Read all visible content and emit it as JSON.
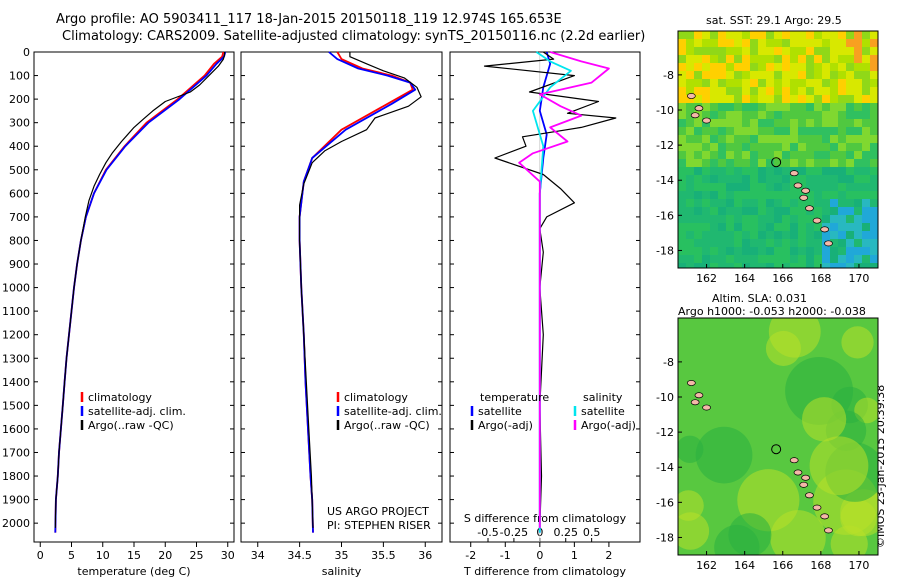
{
  "header": {
    "line1": "Argo profile: AO 5903411_117 18-Jan-2015 20150118_119 12.974S 165.653E",
    "line2": "Climatology: CARS2009. Satellite-adjusted climatology: synTS_20150116.nc (2.2d earlier)"
  },
  "credit": "©IMOS 23-Jan-2015 20:39:38",
  "maps": {
    "sst_title": "sat. SST: 29.1  Argo: 29.5",
    "sla_title1": "Altim. SLA: 0.031",
    "sla_title2": "Argo h1000: -0.053 h2000: -0.038",
    "x_ticks": [
      162,
      164,
      166,
      168,
      170
    ],
    "y_ticks_sst": [
      -8,
      -10,
      -12,
      -14,
      -16,
      -18
    ],
    "y_ticks_sla": [
      -8,
      -10,
      -12,
      -14,
      -16,
      -18
    ],
    "xlim": [
      160.5,
      171.0
    ],
    "ylim": [
      -19.0,
      -5.5
    ],
    "float_lon": 165.653,
    "float_lat": -12.974
  },
  "chart_data": [
    {
      "type": "line",
      "id": "temperature",
      "xlabel": "temperature (deg C)",
      "xlim": [
        -1,
        31
      ],
      "ylim": [
        2080,
        0
      ],
      "x_ticks": [
        0,
        5,
        10,
        15,
        20,
        25,
        30
      ],
      "y_ticks": [
        0,
        100,
        200,
        300,
        400,
        500,
        600,
        700,
        800,
        900,
        1000,
        1100,
        1200,
        1300,
        1400,
        1500,
        1600,
        1700,
        1800,
        1900,
        2000
      ],
      "legend": [
        "climatology",
        "satellite-adj. clim.",
        "Argo(..raw -QC)"
      ],
      "series": [
        {
          "name": "climatology",
          "color": "#ff0000",
          "x": [
            29.3,
            29.1,
            27.8,
            26.3,
            22.0,
            17.0,
            13.5,
            10.5,
            8.6,
            7.3,
            6.5,
            5.9,
            5.4,
            5.0,
            4.6,
            4.2,
            3.9,
            3.6,
            3.3,
            3.0,
            2.8,
            2.5,
            2.4
          ],
          "y": [
            0,
            20,
            50,
            100,
            200,
            300,
            400,
            500,
            600,
            700,
            800,
            900,
            1000,
            1100,
            1200,
            1300,
            1400,
            1500,
            1600,
            1700,
            1800,
            1900,
            2040
          ]
        },
        {
          "name": "satellite-adj. clim.",
          "color": "#0000ff",
          "x": [
            29.6,
            29.4,
            28.2,
            26.6,
            22.3,
            17.3,
            13.6,
            10.6,
            8.6,
            7.3,
            6.5,
            5.9,
            5.4,
            5.0,
            4.6,
            4.2,
            3.9,
            3.6,
            3.3,
            3.0,
            2.8,
            2.5,
            2.4
          ],
          "y": [
            0,
            20,
            50,
            100,
            200,
            300,
            400,
            500,
            600,
            700,
            800,
            900,
            1000,
            1100,
            1200,
            1300,
            1400,
            1500,
            1600,
            1700,
            1800,
            1900,
            2040
          ]
        },
        {
          "name": "Argo(..raw -QC)",
          "color": "#000000",
          "x": [
            29.5,
            29.5,
            29.3,
            28.5,
            27.0,
            25.5,
            24.0,
            20.0,
            18.0,
            16.5,
            15.0,
            13.0,
            11.5,
            10.5,
            9.5,
            8.6,
            7.8,
            7.2,
            6.5,
            5.9,
            5.4,
            5.0,
            4.6,
            4.2,
            3.9,
            3.6,
            3.3,
            3.0,
            2.8,
            2.5,
            2.4
          ],
          "y": [
            0,
            10,
            30,
            60,
            100,
            140,
            170,
            210,
            250,
            285,
            320,
            380,
            430,
            470,
            520,
            570,
            630,
            700,
            800,
            900,
            1000,
            1100,
            1200,
            1300,
            1400,
            1500,
            1600,
            1700,
            1800,
            1900,
            2020
          ]
        }
      ]
    },
    {
      "type": "line",
      "id": "salinity",
      "xlabel": "salinity",
      "xlim": [
        33.8,
        36.2
      ],
      "ylim": [
        2080,
        0
      ],
      "x_ticks": [
        34,
        34.5,
        35,
        35.5,
        36
      ],
      "legend": [
        "climatology",
        "satellite-adj. clim.",
        "Argo(..raw -QC)"
      ],
      "annotation": [
        "US ARGO PROJECT",
        "PI: STEPHEN RISER"
      ],
      "series": [
        {
          "name": "climatology",
          "color": "#ff0000",
          "x": [
            34.95,
            35.0,
            35.25,
            35.6,
            35.82,
            35.85,
            35.55,
            35.0,
            34.65,
            34.55,
            34.5,
            34.5,
            34.52,
            34.55,
            34.57,
            34.6,
            34.63,
            34.65,
            34.66
          ],
          "y": [
            0,
            30,
            70,
            100,
            130,
            160,
            220,
            330,
            450,
            550,
            700,
            800,
            1000,
            1200,
            1400,
            1600,
            1800,
            1900,
            2040
          ]
        },
        {
          "name": "satellite-adj. clim.",
          "color": "#0000ff",
          "x": [
            34.85,
            34.95,
            35.2,
            35.55,
            35.82,
            35.88,
            35.6,
            35.05,
            34.65,
            34.55,
            34.5,
            34.5,
            34.52,
            34.55,
            34.57,
            34.6,
            34.63,
            34.65,
            34.66
          ],
          "y": [
            0,
            30,
            70,
            100,
            130,
            160,
            220,
            330,
            450,
            550,
            700,
            800,
            1000,
            1200,
            1400,
            1600,
            1800,
            1900,
            2040
          ]
        },
        {
          "name": "Argo(..raw -QC)",
          "color": "#000000",
          "x": [
            35.1,
            35.1,
            35.3,
            35.5,
            35.75,
            35.9,
            35.95,
            35.8,
            35.4,
            35.3,
            35.0,
            34.8,
            34.65,
            34.55,
            34.5,
            34.5,
            34.52,
            34.55,
            34.58,
            34.61,
            34.64,
            34.66
          ],
          "y": [
            0,
            20,
            50,
            80,
            110,
            150,
            190,
            230,
            280,
            330,
            380,
            420,
            470,
            560,
            650,
            800,
            1000,
            1200,
            1400,
            1600,
            1800,
            2020
          ]
        }
      ]
    },
    {
      "type": "line",
      "id": "differences",
      "xlabel": "T difference from climatology",
      "toplabel": "S difference from climatology",
      "xlim": [
        -2.6,
        2.9
      ],
      "ylim": [
        2080,
        0
      ],
      "x_ticks": [
        -2,
        -1,
        0,
        1,
        2
      ],
      "s_ticks": [
        -0.5,
        -0.25,
        0,
        0.25,
        0.5
      ],
      "s_scale": 3.0,
      "legend_left_title": "temperature",
      "legend_right_title": "salinity",
      "legend": [
        "satellite",
        "Argo(-adj)",
        "satellite",
        "Argo(-adj)"
      ],
      "series": [
        {
          "name": "T satellite",
          "color": "#0000ff",
          "x": [
            0.2,
            0.3,
            0.1,
            0.0,
            0.2,
            0.1,
            0.0,
            0.0,
            0.0,
            0.0,
            0.0,
            0.0
          ],
          "y": [
            0,
            50,
            150,
            250,
            350,
            450,
            600,
            800,
            1000,
            1400,
            1800,
            2040
          ]
        },
        {
          "name": "T Argo(-adj)",
          "color": "#000000",
          "x": [
            0.1,
            0.4,
            -1.6,
            1.0,
            -0.3,
            1.7,
            0.8,
            2.2,
            1.2,
            -0.5,
            -0.4,
            -1.3,
            0.1,
            0.6,
            1.0,
            0.2,
            0.0,
            0.1,
            0.0,
            0.1,
            0.0,
            0.05,
            0.0
          ],
          "y": [
            0,
            30,
            60,
            100,
            170,
            210,
            260,
            280,
            320,
            360,
            400,
            450,
            520,
            580,
            640,
            700,
            750,
            850,
            1000,
            1200,
            1500,
            1800,
            2020
          ]
        },
        {
          "name": "S satellite",
          "color": "#00e5ee",
          "x": [
            -0.1,
            0.3,
            0.9,
            0.3,
            -0.2,
            0.1,
            0.0,
            0.0,
            0.0,
            0.0,
            0.0
          ],
          "y": [
            0,
            40,
            80,
            150,
            250,
            400,
            600,
            800,
            1200,
            1600,
            2040
          ]
        },
        {
          "name": "S Argo(-adj)",
          "color": "#ff00ff",
          "x": [
            0.3,
            1.2,
            2.0,
            1.5,
            0.0,
            0.6,
            1.2,
            0.3,
            0.8,
            -0.2,
            -0.6,
            0.0,
            0.0,
            0.0,
            0.0
          ],
          "y": [
            0,
            40,
            70,
            130,
            180,
            230,
            270,
            320,
            380,
            430,
            470,
            550,
            800,
            1200,
            2020
          ]
        }
      ]
    }
  ]
}
